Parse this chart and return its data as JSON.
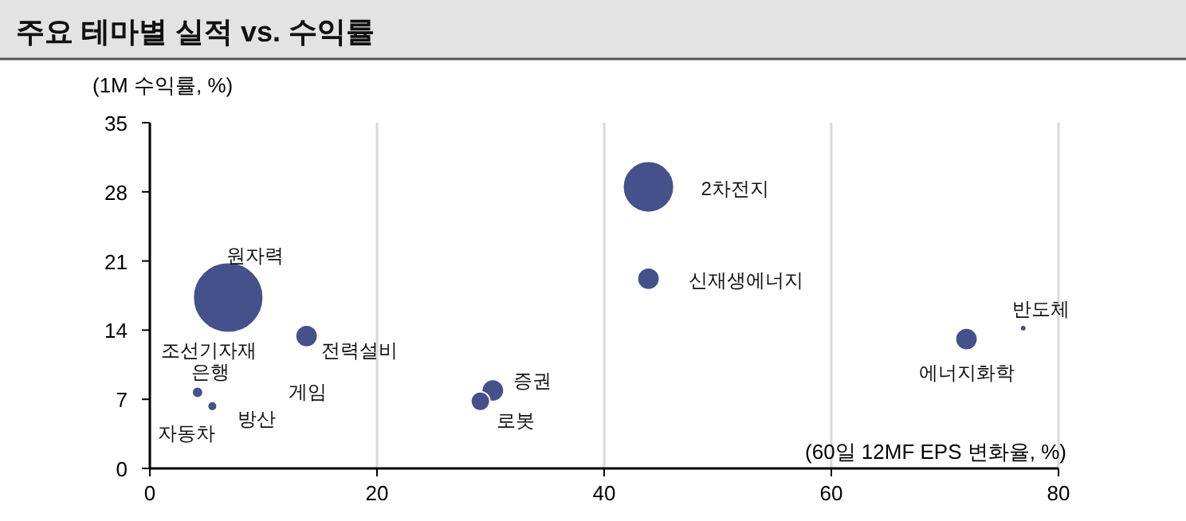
{
  "chart_data": {
    "type": "bubble",
    "title": "주요 테마별 실적 vs. 수익률",
    "ylabel": "(1M 수익률, %)",
    "xlabel": "(60일 12MF EPS 변화율, %)",
    "x": [
      6.9,
      43.9,
      43.9,
      13.8,
      30.2,
      29.1,
      71.9,
      76.9,
      4.2,
      5.5
    ],
    "series": [
      {
        "color": "#44518a",
        "values": [
          17.3,
          28.5,
          19.2,
          13.4,
          7.9,
          6.8,
          13.1,
          14.2,
          7.7,
          6.3
        ],
        "sizes": [
          1,
          0.53,
          0.1,
          0.1,
          0.1,
          0.074,
          0.1,
          0.008,
          0.025,
          0.019
        ]
      }
    ],
    "annotations": [
      {
        "text": "원자력",
        "x": 6.9,
        "y": 17.3
      },
      {
        "text": "2차전지",
        "x": 43.9,
        "y": 28.5
      },
      {
        "text": "신재생에너지",
        "x": 43.9,
        "y": 19.2
      },
      {
        "text": "전력설비",
        "x": 13.8,
        "y": 13.4
      },
      {
        "text": "증권",
        "x": 30.2,
        "y": 7.9
      },
      {
        "text": "로봇",
        "x": 29.1,
        "y": 6.8
      },
      {
        "text": "에너지화학",
        "x": 71.9,
        "y": 13.1
      },
      {
        "text": "반도체",
        "x": 76.9,
        "y": 14.2
      },
      {
        "text": "은행",
        "x": 4.2,
        "y": 7.7
      },
      {
        "text": "방산",
        "x": 5.5,
        "y": 6.3
      },
      "조선기자재",
      "게임",
      "자동차"
    ],
    "xlim": [
      0,
      80
    ],
    "xticks": [
      0,
      20,
      40,
      60,
      80
    ],
    "ylim": [
      0,
      35
    ],
    "yticks": [
      0,
      7,
      14,
      21,
      28,
      35
    ],
    "grid": "x"
  }
}
